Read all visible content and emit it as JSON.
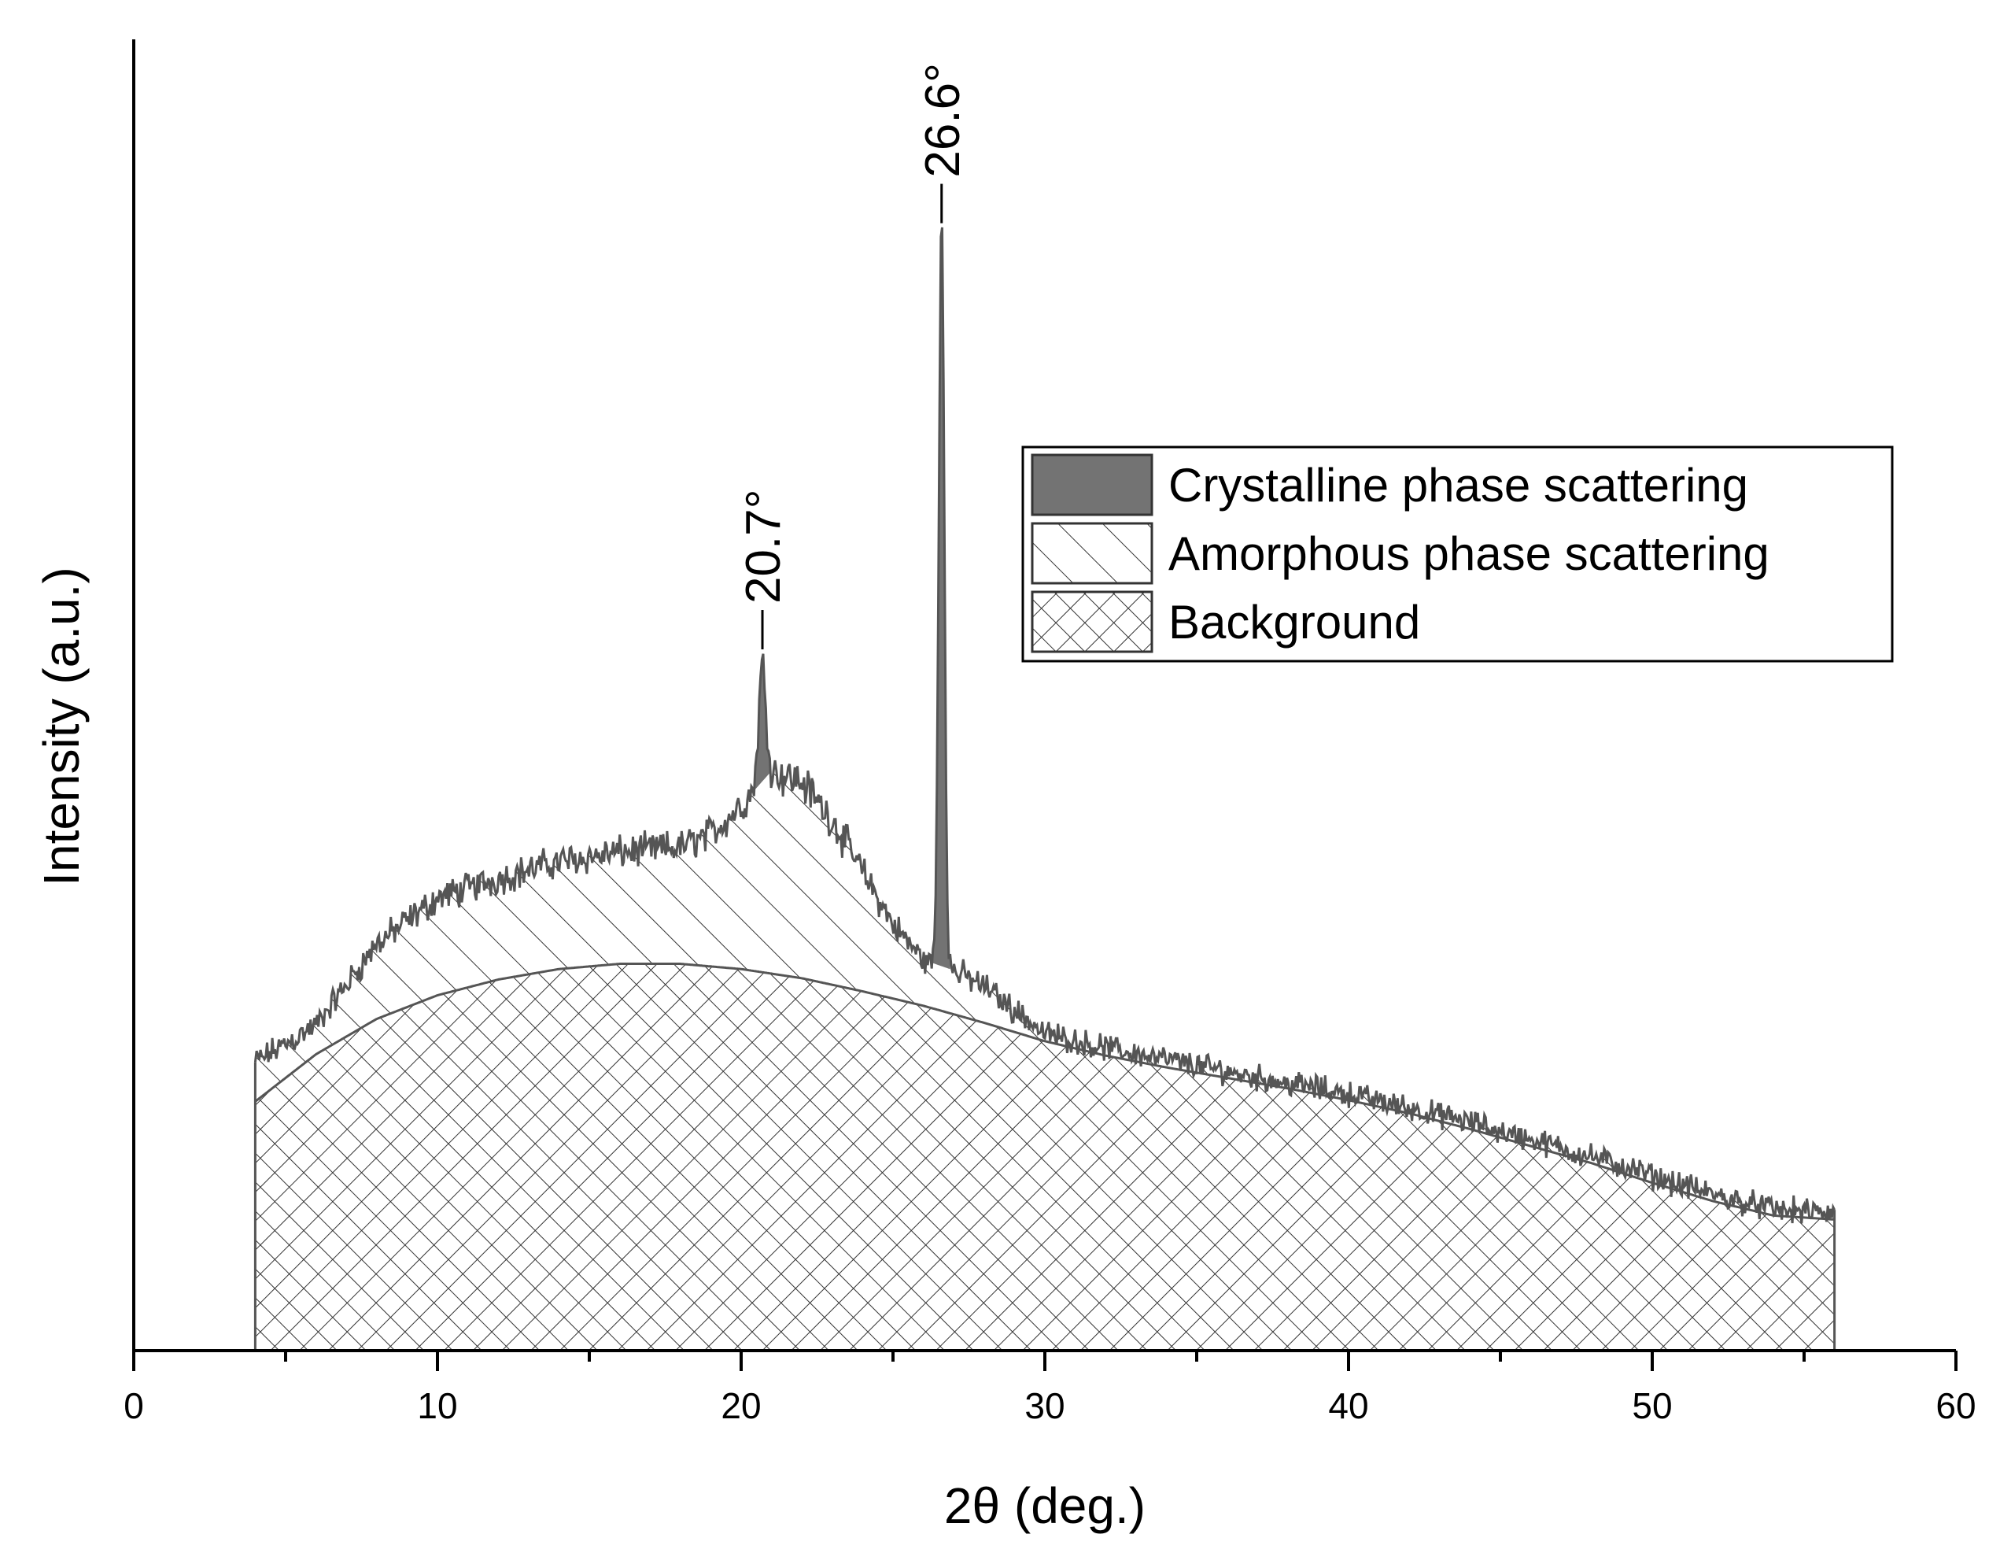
{
  "chart_data": {
    "type": "area",
    "xlabel": "2θ (deg.)",
    "ylabel": "Intensity (a.u.)",
    "xlim": [
      0,
      60
    ],
    "ylim": [
      0,
      100
    ],
    "x_ticks": [
      0,
      10,
      20,
      30,
      40,
      50,
      60
    ],
    "x_tick_labels": [
      "0",
      "10",
      "20",
      "30",
      "40",
      "50",
      "60"
    ],
    "y_ticks_shown": false,
    "grid": false,
    "legend_position": "upper-right",
    "colors": {
      "line": "#555555",
      "crystalline_fill": "#737373",
      "hatch": "#333333",
      "axis": "#000000"
    },
    "legend": [
      {
        "label": "Crystalline phase scattering",
        "pattern": "solid-gray"
      },
      {
        "label": "Amorphous phase scattering",
        "pattern": "diagonal-hatch"
      },
      {
        "label": "Background",
        "pattern": "cross-hatch"
      }
    ],
    "peaks": [
      {
        "x": 20.7,
        "label": "20.7°",
        "y": 53
      },
      {
        "x": 26.6,
        "label": "26.6°",
        "y": 85.5
      }
    ],
    "background_curve": {
      "x": [
        4,
        6,
        8,
        10,
        12,
        14,
        16,
        18,
        20,
        22,
        24,
        26,
        28,
        30,
        32,
        34,
        36,
        38,
        40,
        42,
        44,
        46,
        48,
        50,
        52,
        54,
        56
      ],
      "y": [
        19,
        22.6,
        25.3,
        27.1,
        28.3,
        29.1,
        29.5,
        29.5,
        29.1,
        28.4,
        27.4,
        26.3,
        25.0,
        23.6,
        22.5,
        21.6,
        20.8,
        20.0,
        19.1,
        18.1,
        16.9,
        15.6,
        14.3,
        12.8,
        11.4,
        10.3,
        10.0
      ]
    },
    "amorphous_envelope": {
      "x": [
        4,
        6,
        8,
        10,
        12,
        14,
        16,
        18,
        19,
        20,
        21,
        22,
        23,
        24,
        25,
        26,
        27,
        28,
        30,
        32,
        34,
        36,
        38,
        40,
        42,
        44,
        46,
        48,
        50,
        52,
        54,
        56
      ],
      "y": [
        22,
        24.8,
        31,
        34.5,
        36,
        37.3,
        38,
        38.4,
        39.4,
        41.6,
        44.2,
        43.4,
        40.5,
        36.5,
        32.5,
        29.8,
        29,
        27.8,
        24.2,
        23.1,
        22.2,
        21.3,
        20.4,
        19.6,
        18.5,
        17.4,
        16.1,
        14.8,
        13.3,
        11.9,
        10.8,
        10.4
      ]
    },
    "crystalline_peaks": [
      {
        "center": 20.7,
        "height": 8.8,
        "width": 0.12
      },
      {
        "center": 26.6,
        "height": 57.5,
        "width": 0.09
      }
    ]
  }
}
